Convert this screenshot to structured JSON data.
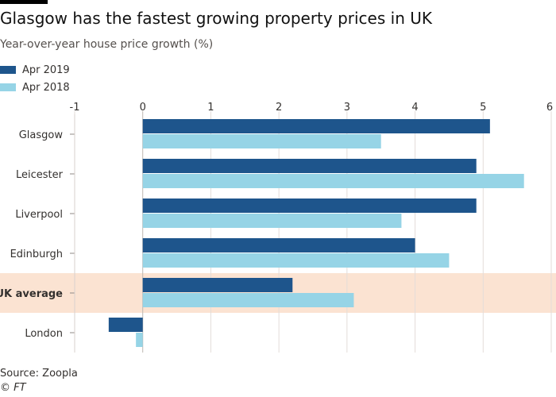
{
  "title": "Glasgow has the fastest growing property prices in UK",
  "subtitle": "Year-over-year house price growth (%)",
  "source": "Source: Zoopla",
  "copyright": "© FT",
  "colors": {
    "apr2019": "#1e558c",
    "apr2018": "#96d4e6",
    "highlight": "#fbe3d2",
    "grid": "#e3ddd9",
    "text": "#33302e"
  },
  "chart_data": {
    "type": "bar",
    "orientation": "horizontal",
    "categories": [
      "Glasgow",
      "Leicester",
      "Liverpool",
      "Edinburgh",
      "UK average",
      "London"
    ],
    "highlighted_category": "UK average",
    "series": [
      {
        "name": "Apr 2019",
        "values": [
          5.1,
          4.9,
          4.9,
          4.0,
          2.2,
          -0.5
        ]
      },
      {
        "name": "Apr 2018",
        "values": [
          3.5,
          5.6,
          3.8,
          4.5,
          3.1,
          -0.1
        ]
      }
    ],
    "xlim": [
      -1,
      6
    ],
    "xticks": [
      -1,
      0,
      1,
      2,
      3,
      4,
      5,
      6
    ],
    "legend_position": "top-left",
    "grid": true
  }
}
